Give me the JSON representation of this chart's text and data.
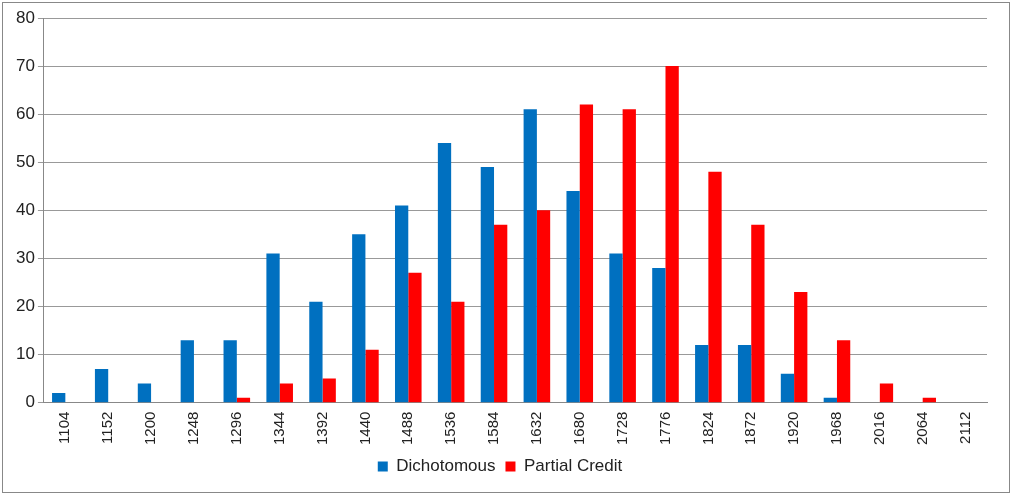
{
  "chart_data": {
    "type": "bar",
    "categories": [
      "1104",
      "1152",
      "1200",
      "1248",
      "1296",
      "1344",
      "1392",
      "1440",
      "1488",
      "1536",
      "1584",
      "1632",
      "1680",
      "1728",
      "1776",
      "1824",
      "1872",
      "1920",
      "1968",
      "2016",
      "2064",
      "2112"
    ],
    "series": [
      {
        "name": "Dichotomous",
        "color": "#0070c0",
        "values": [
          2,
          7,
          4,
          13,
          13,
          31,
          21,
          35,
          41,
          54,
          49,
          61,
          44,
          31,
          28,
          12,
          12,
          6,
          1,
          0,
          0,
          0
        ]
      },
      {
        "name": "Partial Credit",
        "color": "#ff0000",
        "values": [
          0,
          0,
          0,
          0,
          1,
          4,
          5,
          11,
          27,
          21,
          37,
          40,
          62,
          61,
          70,
          48,
          37,
          23,
          13,
          4,
          1,
          0
        ]
      }
    ],
    "ylim": [
      0,
      80
    ],
    "yticks": [
      0,
      10,
      20,
      30,
      40,
      50,
      60,
      70,
      80
    ],
    "grid": "y",
    "legend": "bottom"
  }
}
